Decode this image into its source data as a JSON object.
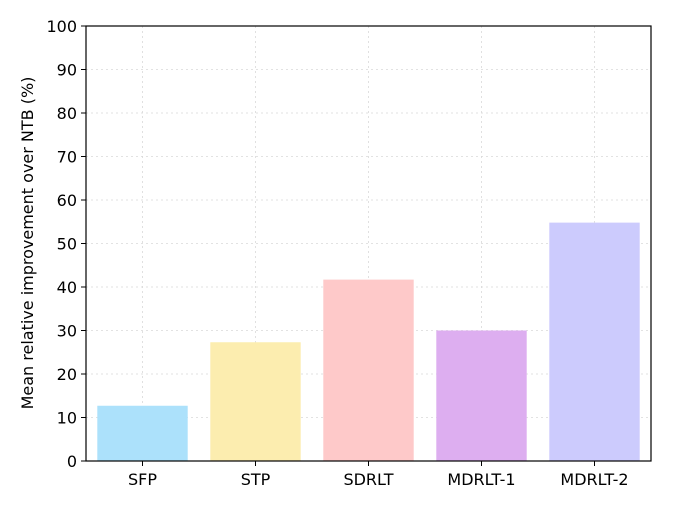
{
  "chart_data": {
    "type": "bar",
    "title": "",
    "xlabel": "",
    "ylabel": "Mean relative improvement over NTB (%)",
    "ylim": [
      0,
      100
    ],
    "yticks": [
      0,
      10,
      20,
      30,
      40,
      50,
      60,
      70,
      80,
      90,
      100
    ],
    "grid": true,
    "categories": [
      "SFP",
      "STP",
      "SDRLT",
      "MDRLT-1",
      "MDRLT-2"
    ],
    "values": [
      12.7,
      27.3,
      41.7,
      30.0,
      54.8
    ],
    "colors": [
      "#ace1fb",
      "#fcedaf",
      "#fec9c9",
      "#ddaef0",
      "#cccbfd"
    ]
  }
}
